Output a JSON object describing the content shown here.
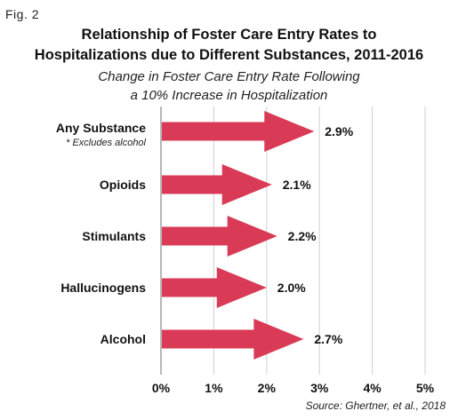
{
  "figure_label": "Fig. 2",
  "title_line1": "Relationship of Foster Care Entry Rates to",
  "title_line2": "Hospitalizations due to Different Substances, 2011-2016",
  "subtitle_line1": "Change in Foster Care Entry Rate Following",
  "subtitle_line2": "a 10% Increase in Hospitalization",
  "source": "Source: Ghertner, et al., 2018",
  "colors": {
    "arrow": "#d93a55",
    "grid": "#cfcfcf",
    "axis": "#888888"
  },
  "chart_data": {
    "type": "bar",
    "orientation": "horizontal",
    "categories": [
      "Any Substance",
      "Opioids",
      "Stimulants",
      "Hallucinogens",
      "Alcohol"
    ],
    "category_notes": [
      "* Excludes alcohol",
      "",
      "",
      "",
      ""
    ],
    "values": [
      2.9,
      2.1,
      2.2,
      2.0,
      2.7
    ],
    "value_labels": [
      "2.9%",
      "2.1%",
      "2.2%",
      "2.0%",
      "2.7%"
    ],
    "xlim": [
      0,
      5
    ],
    "xticks": [
      0,
      1,
      2,
      3,
      4,
      5
    ],
    "xtick_labels": [
      "0%",
      "1%",
      "2%",
      "3%",
      "4%",
      "5%"
    ],
    "grid": true
  }
}
